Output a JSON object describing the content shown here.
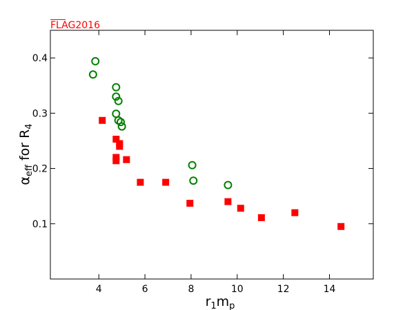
{
  "watermark": "FLAG2016",
  "chart_data": {
    "type": "scatter",
    "title": "",
    "xlabel": "r₁mₚ",
    "ylabel": "αeff for R₄",
    "xlim": [
      1.9,
      15.9
    ],
    "ylim": [
      0.0,
      0.45
    ],
    "xticks": [
      4,
      6,
      8,
      10,
      12,
      14
    ],
    "yticks": [
      0.1,
      0.2,
      0.3,
      0.4
    ],
    "xtick_labels": [
      "4",
      "6",
      "8",
      "10",
      "12",
      "14"
    ],
    "ytick_labels": [
      "0.1",
      "0.2",
      "0.3",
      "0.4"
    ],
    "grid": false,
    "legend": "none",
    "series": [
      {
        "marker": "open-circle",
        "color": "#008000",
        "points": [
          [
            3.75,
            0.37
          ],
          [
            3.85,
            0.394
          ],
          [
            4.75,
            0.347
          ],
          [
            4.75,
            0.33
          ],
          [
            4.85,
            0.322
          ],
          [
            4.75,
            0.299
          ],
          [
            4.85,
            0.287
          ],
          [
            4.95,
            0.284
          ],
          [
            5.0,
            0.276
          ],
          [
            8.05,
            0.206
          ],
          [
            8.1,
            0.178
          ],
          [
            9.6,
            0.17
          ]
        ]
      },
      {
        "marker": "filled-square",
        "color": "#ff0000",
        "points": [
          [
            4.15,
            0.287
          ],
          [
            4.75,
            0.253
          ],
          [
            4.9,
            0.245
          ],
          [
            4.9,
            0.24
          ],
          [
            4.75,
            0.22
          ],
          [
            4.75,
            0.214
          ],
          [
            5.2,
            0.216
          ],
          [
            5.8,
            0.175
          ],
          [
            6.9,
            0.175
          ],
          [
            7.95,
            0.137
          ],
          [
            9.6,
            0.14
          ],
          [
            10.15,
            0.128
          ],
          [
            11.05,
            0.111
          ],
          [
            12.5,
            0.12
          ],
          [
            14.5,
            0.095
          ]
        ]
      }
    ]
  }
}
